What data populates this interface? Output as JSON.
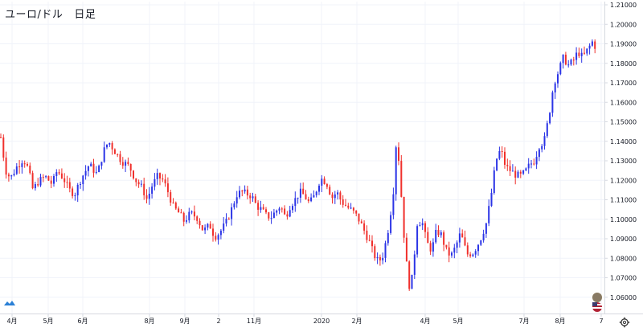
{
  "header": {
    "pair": "ユーロ/ドル",
    "interval": "日足"
  },
  "colors": {
    "up": "#2b34e6",
    "down": "#f0302c",
    "grid": "#f0f3fa",
    "axis": "#d6d9e0",
    "text": "#131722"
  },
  "icons": {
    "logo": "tradingview-logo-icon",
    "settings": "gear-icon",
    "flags": "currency-flags-icon"
  },
  "chart_data": {
    "type": "candlestick",
    "title": "ユーロ/ドル 日足",
    "xlabel": "",
    "ylabel": "",
    "y_ticks": [
      "1.06000",
      "1.07000",
      "1.08000",
      "1.09000",
      "1.10000",
      "1.11000",
      "1.12000",
      "1.13000",
      "1.14000",
      "1.15000",
      "1.16000",
      "1.17000",
      "1.18000",
      "1.19000",
      "1.20000",
      "1.21000"
    ],
    "ylim": [
      1.052,
      1.211
    ],
    "x_ticks": [
      "4月",
      "5月",
      "6月",
      "8月",
      "9月",
      "2",
      "11月",
      "2020",
      "2月",
      "4月",
      "5月",
      "7月",
      "8月",
      "7"
    ],
    "grid": true,
    "anchor_path": [
      [
        0,
        1.142
      ],
      [
        6,
        1.125
      ],
      [
        12,
        1.121
      ],
      [
        20,
        1.127
      ],
      [
        28,
        1.131
      ],
      [
        34,
        1.126
      ],
      [
        40,
        1.115
      ],
      [
        46,
        1.119
      ],
      [
        55,
        1.122
      ],
      [
        64,
        1.118
      ],
      [
        70,
        1.125
      ],
      [
        78,
        1.121
      ],
      [
        85,
        1.115
      ],
      [
        92,
        1.113
      ],
      [
        100,
        1.121
      ],
      [
        110,
        1.128
      ],
      [
        120,
        1.123
      ],
      [
        128,
        1.135
      ],
      [
        134,
        1.14
      ],
      [
        140,
        1.136
      ],
      [
        150,
        1.13
      ],
      [
        160,
        1.127
      ],
      [
        168,
        1.12
      ],
      [
        176,
        1.116
      ],
      [
        182,
        1.11
      ],
      [
        188,
        1.117
      ],
      [
        195,
        1.122
      ],
      [
        202,
        1.12
      ],
      [
        208,
        1.114
      ],
      [
        215,
        1.106
      ],
      [
        222,
        1.103
      ],
      [
        228,
        1.099
      ],
      [
        236,
        1.103
      ],
      [
        244,
        1.101
      ],
      [
        252,
        1.094
      ],
      [
        260,
        1.097
      ],
      [
        266,
        1.091
      ],
      [
        272,
        1.093
      ],
      [
        280,
        1.098
      ],
      [
        286,
        1.104
      ],
      [
        294,
        1.113
      ],
      [
        300,
        1.114
      ],
      [
        306,
        1.113
      ],
      [
        312,
        1.112
      ],
      [
        318,
        1.107
      ],
      [
        324,
        1.105
      ],
      [
        330,
        1.102
      ],
      [
        336,
        1.101
      ],
      [
        342,
        1.104
      ],
      [
        348,
        1.107
      ],
      [
        354,
        1.101
      ],
      [
        360,
        1.107
      ],
      [
        366,
        1.11
      ],
      [
        372,
        1.114
      ],
      [
        378,
        1.112
      ],
      [
        384,
        1.108
      ],
      [
        390,
        1.112
      ],
      [
        396,
        1.119
      ],
      [
        400,
        1.121
      ],
      [
        406,
        1.118
      ],
      [
        412,
        1.111
      ],
      [
        418,
        1.114
      ],
      [
        424,
        1.109
      ],
      [
        432,
        1.106
      ],
      [
        438,
        1.104
      ],
      [
        444,
        1.101
      ],
      [
        450,
        1.096
      ],
      [
        458,
        1.089
      ],
      [
        464,
        1.082
      ],
      [
        470,
        1.078
      ],
      [
        476,
        1.082
      ],
      [
        482,
        1.095
      ],
      [
        488,
        1.112
      ],
      [
        492,
        1.14
      ],
      [
        496,
        1.128
      ],
      [
        500,
        1.1
      ],
      [
        504,
        1.08
      ],
      [
        508,
        1.066
      ],
      [
        512,
        1.07
      ],
      [
        518,
        1.098
      ],
      [
        524,
        1.099
      ],
      [
        530,
        1.088
      ],
      [
        536,
        1.084
      ],
      [
        542,
        1.094
      ],
      [
        548,
        1.092
      ],
      [
        554,
        1.084
      ],
      [
        560,
        1.081
      ],
      [
        566,
        1.086
      ],
      [
        572,
        1.093
      ],
      [
        580,
        1.082
      ],
      [
        588,
        1.083
      ],
      [
        596,
        1.089
      ],
      [
        604,
        1.098
      ],
      [
        610,
        1.112
      ],
      [
        616,
        1.13
      ],
      [
        622,
        1.136
      ],
      [
        628,
        1.127
      ],
      [
        634,
        1.125
      ],
      [
        640,
        1.123
      ],
      [
        646,
        1.122
      ],
      [
        652,
        1.124
      ],
      [
        658,
        1.128
      ],
      [
        664,
        1.13
      ],
      [
        670,
        1.138
      ],
      [
        676,
        1.14
      ],
      [
        682,
        1.153
      ],
      [
        688,
        1.17
      ],
      [
        694,
        1.176
      ],
      [
        700,
        1.183
      ],
      [
        706,
        1.179
      ],
      [
        712,
        1.181
      ],
      [
        718,
        1.186
      ],
      [
        724,
        1.183
      ],
      [
        730,
        1.187
      ],
      [
        736,
        1.191
      ],
      [
        742,
        1.187
      ]
    ]
  }
}
